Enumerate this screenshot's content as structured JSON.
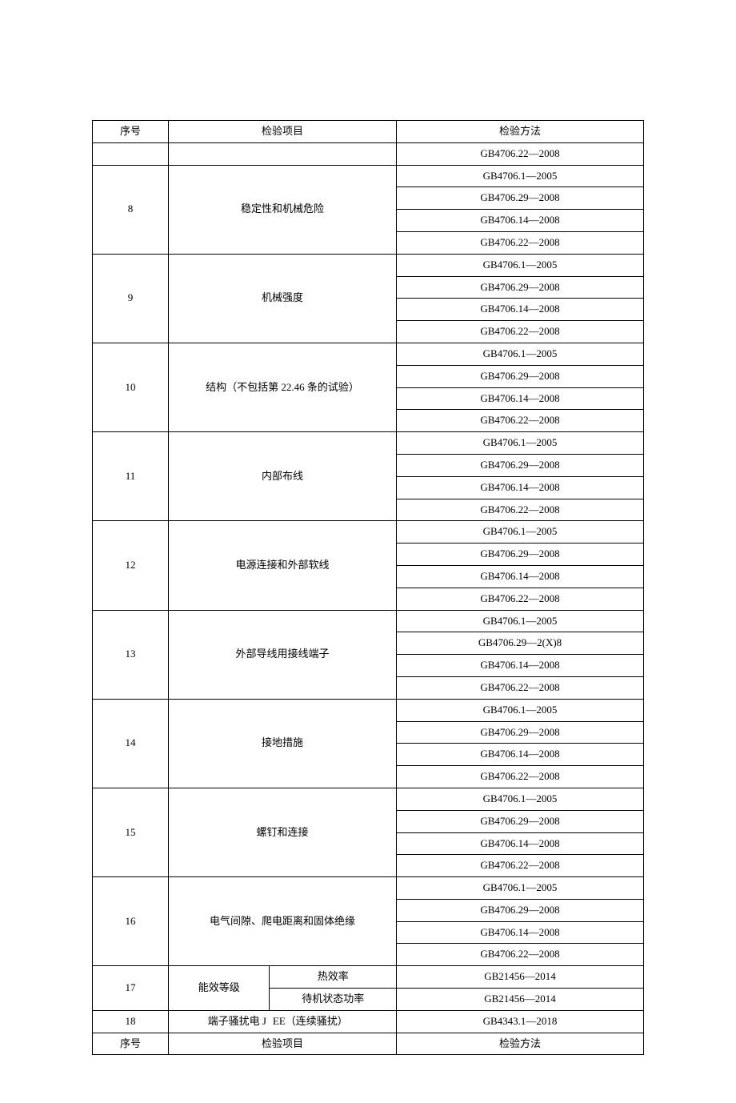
{
  "table": {
    "headers": {
      "seq": "序号",
      "item": "检验项目",
      "method": "检验方法"
    },
    "residual_row": {
      "methods": [
        "GB4706.22—2008"
      ]
    },
    "rows": [
      {
        "seq": "8",
        "item": "稳定性和机械危险",
        "methods": [
          "GB4706.1—2005",
          "GB4706.29—2008",
          "GB4706.14—2008",
          "GB4706.22—2008"
        ]
      },
      {
        "seq": "9",
        "item": "机械强度",
        "methods": [
          "GB4706.1—2005",
          "GB4706.29—2008",
          "GB4706.14—2008",
          "GB4706.22—2008"
        ]
      },
      {
        "seq": "10",
        "item": "结构（不包括第 22.46 条的试验）",
        "methods": [
          "GB4706.1—2005",
          "GB4706.29—2008",
          "GB4706.14—2008",
          "GB4706.22—2008"
        ]
      },
      {
        "seq": "11",
        "item": "内部布线",
        "methods": [
          "GB4706.1—2005",
          "GB4706.29—2008",
          "GB4706.14—2008",
          "GB4706.22—2008"
        ]
      },
      {
        "seq": "12",
        "item": "电源连接和外部软线",
        "methods": [
          "GB4706.1—2005",
          "GB4706.29—2008",
          "GB4706.14—2008",
          "GB4706.22—2008"
        ]
      },
      {
        "seq": "13",
        "item": "外部导线用接线端子",
        "methods": [
          "GB4706.1—2005",
          "GB4706.29—2(X)8",
          "GB4706.14—2008",
          "GB4706.22—2008"
        ]
      },
      {
        "seq": "14",
        "item": "接地措施",
        "methods": [
          "GB4706.1—2005",
          "GB4706.29—2008",
          "GB4706.14—2008",
          "GB4706.22—2008"
        ]
      },
      {
        "seq": "15",
        "item": "螺钉和连接",
        "methods": [
          "GB4706.1—2005",
          "GB4706.29—2008",
          "GB4706.14—2008",
          "GB4706.22—2008"
        ]
      },
      {
        "seq": "16",
        "item": "电气间隙、爬电距离和固体绝缘",
        "methods": [
          "GB4706.1—2005",
          "GB4706.29—2008",
          "GB4706.14—2008",
          "GB4706.22—2008"
        ]
      }
    ],
    "row17": {
      "seq": "17",
      "item": "能效等级",
      "sub1_item": "热效率",
      "sub1_method": "GB21456—2014",
      "sub2_item": "待机状态功率",
      "sub2_method": "GB21456—2014"
    },
    "row18": {
      "seq": "18",
      "item_left": "端子骚扰电 J",
      "item_right": "EE（连续骚扰）",
      "method": "GB4343.1—2018"
    },
    "footers": {
      "seq": "序号",
      "item": "检验项目",
      "method": "检验方法"
    }
  },
  "style": {
    "background_color": "#ffffff",
    "border_color": "#000000",
    "text_color": "#000000",
    "font_size": 13
  }
}
